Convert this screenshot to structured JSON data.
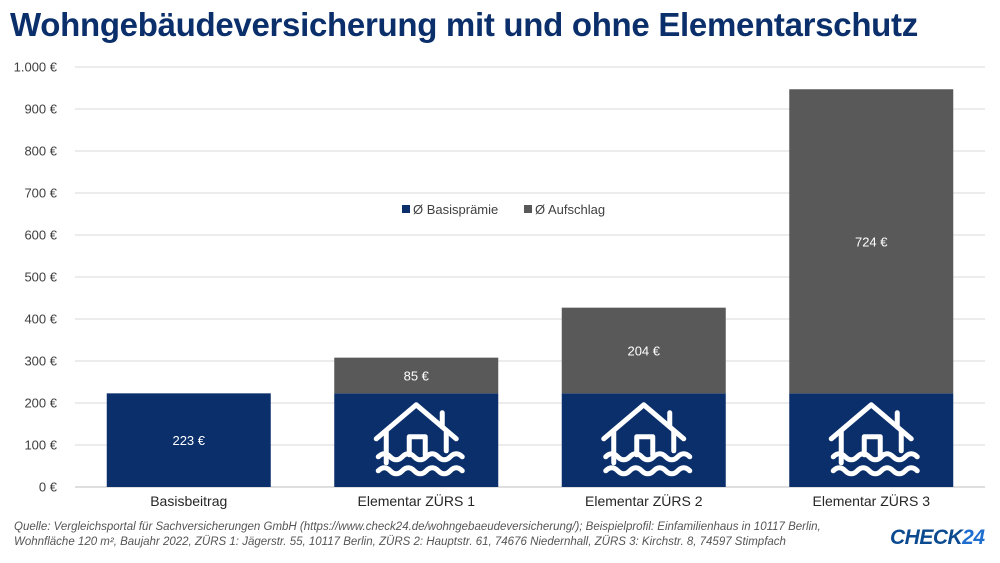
{
  "title": "Wohngebäudeversicherung mit und ohne Elementarschutz",
  "source": "Quelle: Vergleichsportal für Sachversicherungen GmbH (https://www.check24.de/wohngebaeudeversicherung/); Beispielprofil: Einfamilienhaus in 10117 Berlin, Wohnfläche 120 m², Baujahr 2022, ZÜRS 1: Jägerstr. 55, 10117 Berlin, ZÜRS 2: Hauptstr. 61, 74676 Niedernhall, ZÜRS 3: Kirchstr. 8, 74597 Stimpfach",
  "logo": {
    "text": "CHECK",
    "number": "24"
  },
  "colors": {
    "base": "#0b2f6b",
    "surcharge": "#595959",
    "title": "#0b2f6b",
    "grid": "#d9d9d9"
  },
  "chart_data": {
    "type": "bar",
    "stacked": true,
    "categories": [
      "Basisbeitrag",
      "Elementar ZÜRS 1",
      "Elementar ZÜRS 2",
      "Elementar ZÜRS 3"
    ],
    "series": [
      {
        "name": "Ø Basisprämie",
        "values": [
          223,
          223,
          223,
          223
        ],
        "color": "#0b2f6b"
      },
      {
        "name": "Ø Aufschlag",
        "values": [
          0,
          85,
          204,
          724
        ],
        "color": "#595959"
      }
    ],
    "data_labels": {
      "Basisbeitrag": [
        "223 €",
        ""
      ],
      "Elementar ZÜRS 1": [
        "",
        "85 €"
      ],
      "Elementar ZÜRS 2": [
        "",
        "204 €"
      ],
      "Elementar ZÜRS 3": [
        "",
        "724 €"
      ]
    },
    "icon": "flooded-house-icon",
    "icon_categories": [
      "Elementar ZÜRS 1",
      "Elementar ZÜRS 2",
      "Elementar ZÜRS 3"
    ],
    "ylim": [
      0,
      1000
    ],
    "yticks": [
      0,
      100,
      200,
      300,
      400,
      500,
      600,
      700,
      800,
      900,
      1000
    ],
    "ytick_labels": [
      "0 €",
      "100 €",
      "200 €",
      "300 €",
      "400 €",
      "500 €",
      "600 €",
      "700 €",
      "800 €",
      "900 €",
      "1.000 €"
    ],
    "grid": true,
    "legend_position": "center"
  }
}
